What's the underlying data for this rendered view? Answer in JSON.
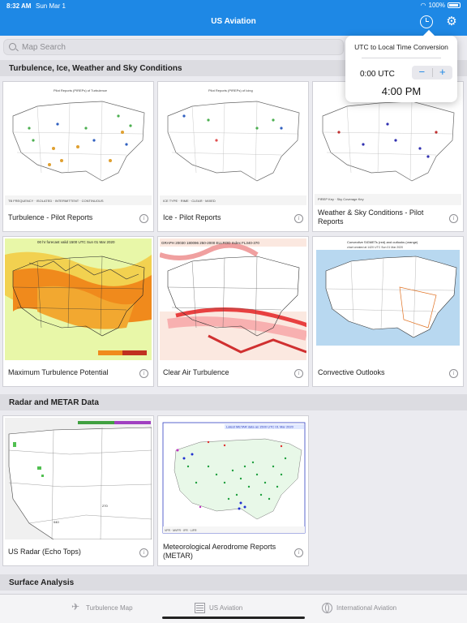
{
  "status": {
    "time": "8:32 AM",
    "date": "Sun Mar 1",
    "battery": "100%"
  },
  "header": {
    "title": "US Aviation"
  },
  "search": {
    "placeholder": "Map Search"
  },
  "sections": {
    "turbulence": "Turbulence, Ice, Weather and Sky Conditions",
    "radar": "Radar and METAR Data",
    "surface": "Surface Analysis"
  },
  "cards": {
    "turb_pirep": "Turbulence - Pilot Reports",
    "ice_pirep": "Ice - Pilot Reports",
    "wx_sky": "Weather & Sky Conditions - Pilot Reports",
    "max_turb": "Maximum Turbulence Potential",
    "cat": "Clear Air Turbulence",
    "convective": "Convective Outlooks",
    "radar": "US Radar (Echo Tops)",
    "metar": "Meteorological Aerodrome Reports (METAR)"
  },
  "popover": {
    "title": "UTC to Local Time Conversion",
    "utc_value": "0:00 UTC",
    "minus": "−",
    "plus": "+",
    "local_time": "4:00 PM"
  },
  "tabs": {
    "turbulence_map": "Turbulence Map",
    "us_aviation": "US Aviation",
    "international": "International Aviation"
  }
}
